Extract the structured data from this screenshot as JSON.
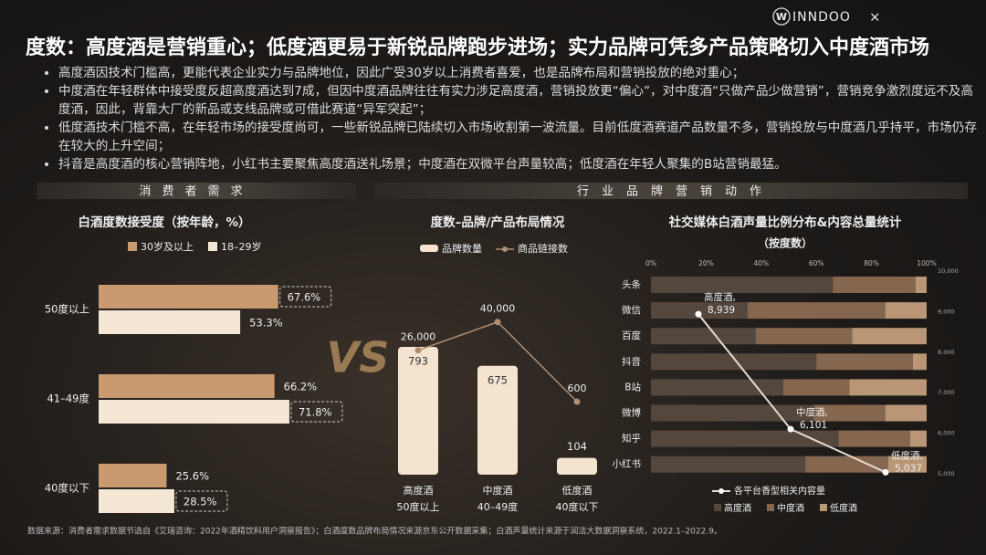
{
  "logo": {
    "mark": "W",
    "text": "INNDOO",
    "joiner": "×"
  },
  "header": {
    "title": "度数：高度酒是营销重心；低度酒更易于新锐品牌跑步进场；实力品牌可凭多产品策略切入中度酒市场"
  },
  "bullets": [
    "高度酒因技术门槛高，更能代表企业实力与品牌地位，因此广受30岁以上消费者喜爱，也是品牌布局和营销投放的绝对重心；",
    "中度酒在年轻群体中接受度反超高度酒达到7成，但因中度酒品牌往往有实力涉足高度酒，营销投放更“偏心”，对中度酒“只做产品少做营销”，营销竞争激烈度远不及高度酒，因此，背靠大厂的新品或支线品牌或可借此赛道“异军突起”；",
    "低度酒技术门槛不高，在年轻市场的接受度尚可，一些新锐品牌已陆续切入市场收割第一波流量。目前低度酒赛道产品数量不多，营销投放与中度酒几乎持平，市场仍存在较大的上升空间；",
    "抖音是高度酒的核心营销阵地，小红书主要聚焦高度酒送礼场景；中度酒在双微平台声量较高；低度酒在年轻人聚集的B站营销最猛。"
  ],
  "section_labels": [
    "消费者需求",
    "行业品牌营销动作"
  ],
  "vs_label": "VS",
  "chart_data": [
    {
      "type": "hbar",
      "title": "白酒度数接受度（按年龄，%）",
      "categories": [
        "50度以上",
        "41–49度",
        "40度以下"
      ],
      "series": [
        {
          "name": "30岁及以上",
          "color": "#c99a70",
          "values": [
            67.6,
            66.2,
            25.6
          ],
          "value_labels": [
            "67.6%",
            "66.2%",
            "25.6%"
          ]
        },
        {
          "name": "18–29岁",
          "color": "#f5e7d6",
          "values": [
            53.3,
            71.8,
            28.5
          ],
          "value_labels": [
            "53.3%",
            "71.8%",
            "28.5%"
          ]
        }
      ]
    },
    {
      "type": "bar-line",
      "title": "度数–品牌/产品布局情况",
      "categories": [
        "高度酒",
        "中度酒",
        "低度酒"
      ],
      "subcategories": [
        "50度以上",
        "40–49度",
        "40度以下"
      ],
      "series": [
        {
          "name": "品牌数量",
          "color": "#f3e3cf",
          "values": [
            793,
            675,
            104
          ]
        },
        {
          "name": "商品链接数",
          "color": "#b08e73",
          "axis": "y2",
          "values": [
            26000,
            40000,
            600
          ],
          "value_labels": [
            "26,000",
            "40,000",
            "600"
          ]
        }
      ]
    },
    {
      "type": "stacked-hbar-line",
      "title": "社交媒体白酒声量比例分布&内容总量统计",
      "subtitle": "（按度数）",
      "categories": [
        "头条",
        "微信",
        "百度",
        "抖音",
        "B站",
        "微博",
        "知乎",
        "小红书"
      ],
      "xlim": [
        0,
        100
      ],
      "xticks": [
        {
          "value": 0,
          "label": "0%"
        },
        {
          "value": 20,
          "label": "20%"
        },
        {
          "value": 40,
          "label": "40%"
        },
        {
          "value": 60,
          "label": "60%"
        },
        {
          "value": 80,
          "label": "80%"
        },
        {
          "value": 100,
          "label": "100%"
        }
      ],
      "y2lim": [
        5000,
        10000
      ],
      "y2ticks": [
        {
          "value": 5000,
          "label": "5,000"
        },
        {
          "value": 6000,
          "label": "6,000"
        },
        {
          "value": 7000,
          "label": "7,000"
        },
        {
          "value": 8000,
          "label": "8,000"
        },
        {
          "value": 9000,
          "label": "9,000"
        },
        {
          "value": 10000,
          "label": "10,000"
        }
      ],
      "series": [
        {
          "name": "高度酒",
          "color": "#54473d",
          "values": [
            66,
            35,
            38,
            60,
            48,
            59,
            68,
            56
          ]
        },
        {
          "name": "中度酒",
          "color": "#856750",
          "values": [
            30,
            50,
            35,
            35,
            24,
            26,
            26,
            30
          ]
        },
        {
          "name": "低度酒",
          "color": "#b89676",
          "values": [
            4,
            15,
            27,
            5,
            28,
            15,
            6,
            14
          ]
        }
      ],
      "line": {
        "name": "各平台香型相关内容量",
        "color": "#e8ddd2",
        "axis": "y2",
        "labels": [
          "高度酒,",
          "中度酒,",
          "低度酒,"
        ],
        "values": [
          8939,
          6101,
          5037
        ],
        "value_labels": [
          "8,939",
          "6,101",
          "5,037"
        ]
      }
    }
  ],
  "footer": "数据来源：消费者需求数据节选自《艾瑞咨询：2022年酒精饮料用户洞察报告》；白酒度数品牌布局情况来源京东公开数据采集；白酒声量统计来源于润洁大数据洞察系统，2022.1–2022.9。"
}
